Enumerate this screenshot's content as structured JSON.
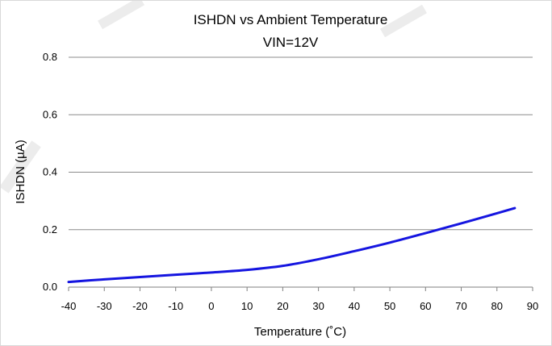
{
  "chart_data": {
    "type": "line",
    "title": "ISHDN vs Ambient Temperature",
    "subtitle": "VIN=12V",
    "xlabel": "Temperature (˚C)",
    "ylabel": "ISHDN (µA)",
    "xlim": [
      -40,
      90
    ],
    "ylim": [
      0,
      0.8
    ],
    "x_ticks": [
      "-40",
      "-30",
      "-20",
      "-10",
      "0",
      "10",
      "20",
      "30",
      "40",
      "50",
      "60",
      "70",
      "80",
      "90"
    ],
    "y_ticks": [
      "0.0",
      "0.2",
      "0.4",
      "0.6",
      "0.8"
    ],
    "grid": "horizontal",
    "legend": "none",
    "series": [
      {
        "color": "#1515e0",
        "x": [
          -40,
          -30,
          -20,
          -10,
          0,
          10,
          20,
          30,
          40,
          50,
          60,
          70,
          80,
          85
        ],
        "y": [
          0.018,
          0.027,
          0.035,
          0.043,
          0.051,
          0.06,
          0.074,
          0.097,
          0.125,
          0.155,
          0.188,
          0.222,
          0.257,
          0.275
        ]
      }
    ]
  }
}
